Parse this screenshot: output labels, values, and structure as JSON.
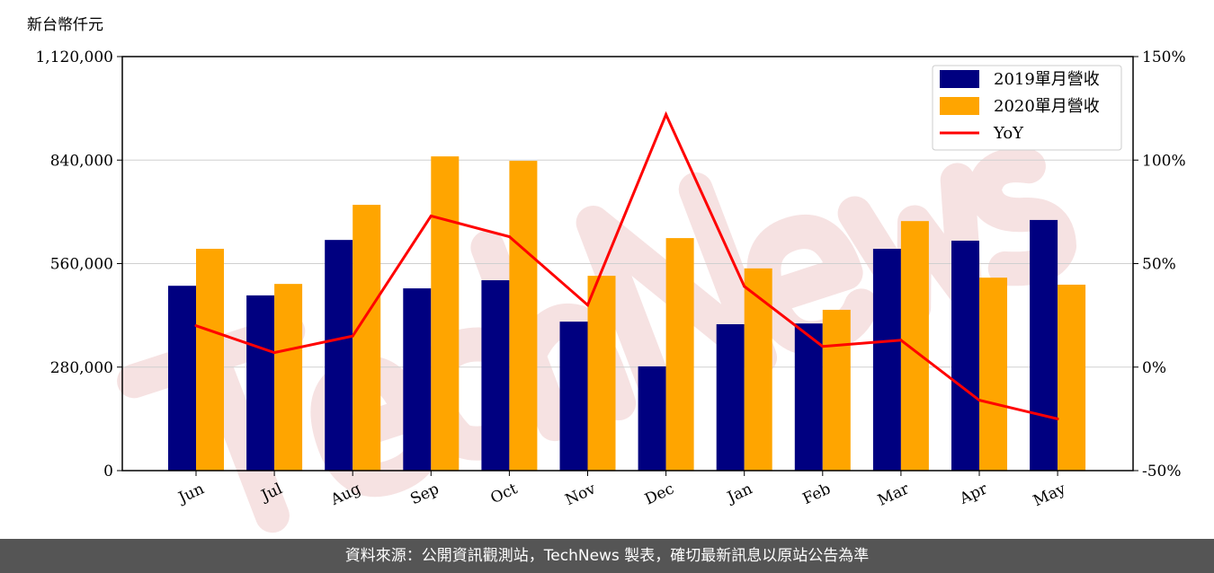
{
  "chart_data": {
    "type": "bar",
    "ylabel": "新台幣仟元",
    "categories": [
      "Jun",
      "Jul",
      "Aug",
      "Sep",
      "Oct",
      "Nov",
      "Dec",
      "Jan",
      "Feb",
      "Mar",
      "Apr",
      "May"
    ],
    "ylim": [
      0,
      1120000
    ],
    "yticks": [
      "0",
      "280,000",
      "560,000",
      "840,000",
      "1,120,000"
    ],
    "y2lim": [
      -50,
      150
    ],
    "y2ticks": [
      "-50%",
      "0%",
      "50%",
      "100%",
      "150%"
    ],
    "grid": true,
    "legend": "top-right",
    "series": [
      {
        "name": "2019單月營收",
        "type": "bar",
        "color": "#000080",
        "values": [
          500000,
          474000,
          624000,
          493000,
          515000,
          403000,
          282000,
          396000,
          398000,
          600000,
          622000,
          678000
        ]
      },
      {
        "name": "2020單月營收",
        "type": "bar",
        "color": "#FFA500",
        "values": [
          600000,
          505000,
          719000,
          850000,
          838000,
          527000,
          629000,
          547000,
          435000,
          675000,
          522000,
          503000
        ]
      },
      {
        "name": "YoY",
        "type": "line",
        "axis": "right",
        "color": "#FF0000",
        "values": [
          20,
          7,
          15,
          73,
          63,
          30,
          122,
          39,
          10,
          13,
          -16,
          -25
        ]
      }
    ]
  },
  "watermark": "TechNews",
  "footer": "資料來源：公開資訊觀測站，TechNews 製表，確切最新訊息以原站公告為準"
}
